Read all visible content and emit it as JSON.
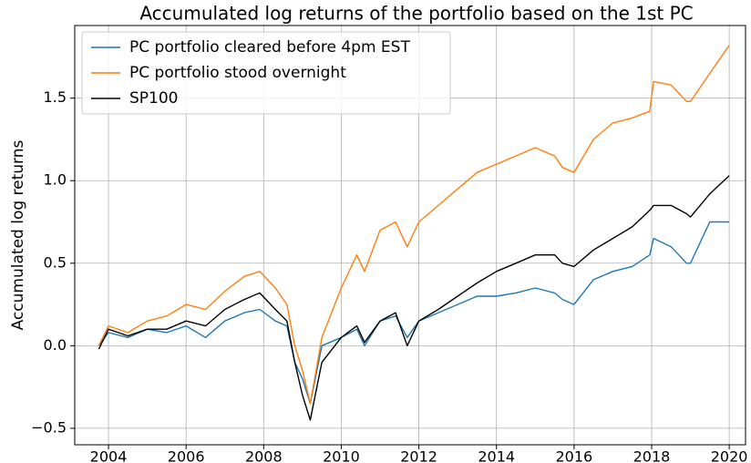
{
  "chart_data": {
    "type": "line",
    "title": "Accumulated log returns of the portfolio based on the 1st PC",
    "ylabel": "Accumulated log returns",
    "x": [
      2003.75,
      2004,
      2004.5,
      2005,
      2005.5,
      2006,
      2006.5,
      2007,
      2007.5,
      2007.9,
      2008.3,
      2008.6,
      2008.8,
      2009,
      2009.2,
      2009.5,
      2010,
      2010.4,
      2010.6,
      2011,
      2011.4,
      2011.7,
      2012,
      2012.5,
      2013,
      2013.5,
      2014,
      2014.5,
      2015,
      2015.5,
      2015.7,
      2016,
      2016.5,
      2017,
      2017.5,
      2017.95,
      2018.05,
      2018.5,
      2018.9,
      2019,
      2019.5,
      2020
    ],
    "series": [
      {
        "name": "PC portfolio cleared before 4pm EST",
        "color": "#1f77b4",
        "values": [
          0,
          0.08,
          0.05,
          0.1,
          0.08,
          0.12,
          0.05,
          0.15,
          0.2,
          0.22,
          0.15,
          0.12,
          -0.1,
          -0.2,
          -0.35,
          0.0,
          0.05,
          0.1,
          0.0,
          0.15,
          0.18,
          0.05,
          0.15,
          0.2,
          0.25,
          0.3,
          0.3,
          0.32,
          0.35,
          0.32,
          0.28,
          0.25,
          0.4,
          0.45,
          0.48,
          0.55,
          0.65,
          0.6,
          0.5,
          0.5,
          0.75,
          0.75
        ]
      },
      {
        "name": "PC portfolio stood overnight",
        "color": "#ff7f0e",
        "values": [
          0,
          0.12,
          0.08,
          0.15,
          0.18,
          0.25,
          0.22,
          0.33,
          0.42,
          0.45,
          0.35,
          0.25,
          0.0,
          -0.15,
          -0.35,
          0.05,
          0.35,
          0.55,
          0.45,
          0.7,
          0.75,
          0.6,
          0.75,
          0.85,
          0.95,
          1.05,
          1.1,
          1.15,
          1.2,
          1.15,
          1.08,
          1.05,
          1.25,
          1.35,
          1.38,
          1.42,
          1.6,
          1.58,
          1.48,
          1.48,
          1.65,
          1.82
        ]
      },
      {
        "name": "SP100",
        "color": "#000000",
        "values": [
          -0.02,
          0.1,
          0.06,
          0.1,
          0.1,
          0.15,
          0.12,
          0.22,
          0.28,
          0.32,
          0.22,
          0.15,
          -0.1,
          -0.3,
          -0.45,
          -0.1,
          0.05,
          0.12,
          0.02,
          0.15,
          0.2,
          0.0,
          0.15,
          0.22,
          0.3,
          0.38,
          0.45,
          0.5,
          0.55,
          0.55,
          0.5,
          0.48,
          0.58,
          0.65,
          0.72,
          0.82,
          0.85,
          0.85,
          0.8,
          0.78,
          0.92,
          1.03
        ]
      }
    ],
    "xlim": [
      2003.13,
      2020.42
    ],
    "xticks": [
      2004,
      2006,
      2008,
      2010,
      2012,
      2014,
      2016,
      2018,
      2020
    ],
    "ylim": [
      -0.6,
      1.94
    ],
    "yticks": [
      {
        "value": -0.5,
        "label": "−0.5"
      },
      {
        "value": 0,
        "label": "0.0"
      },
      {
        "value": 0.5,
        "label": "0.5"
      },
      {
        "value": 1,
        "label": "1.0"
      },
      {
        "value": 1.5,
        "label": "1.5"
      }
    ],
    "grid": true,
    "legend": "upper left"
  }
}
